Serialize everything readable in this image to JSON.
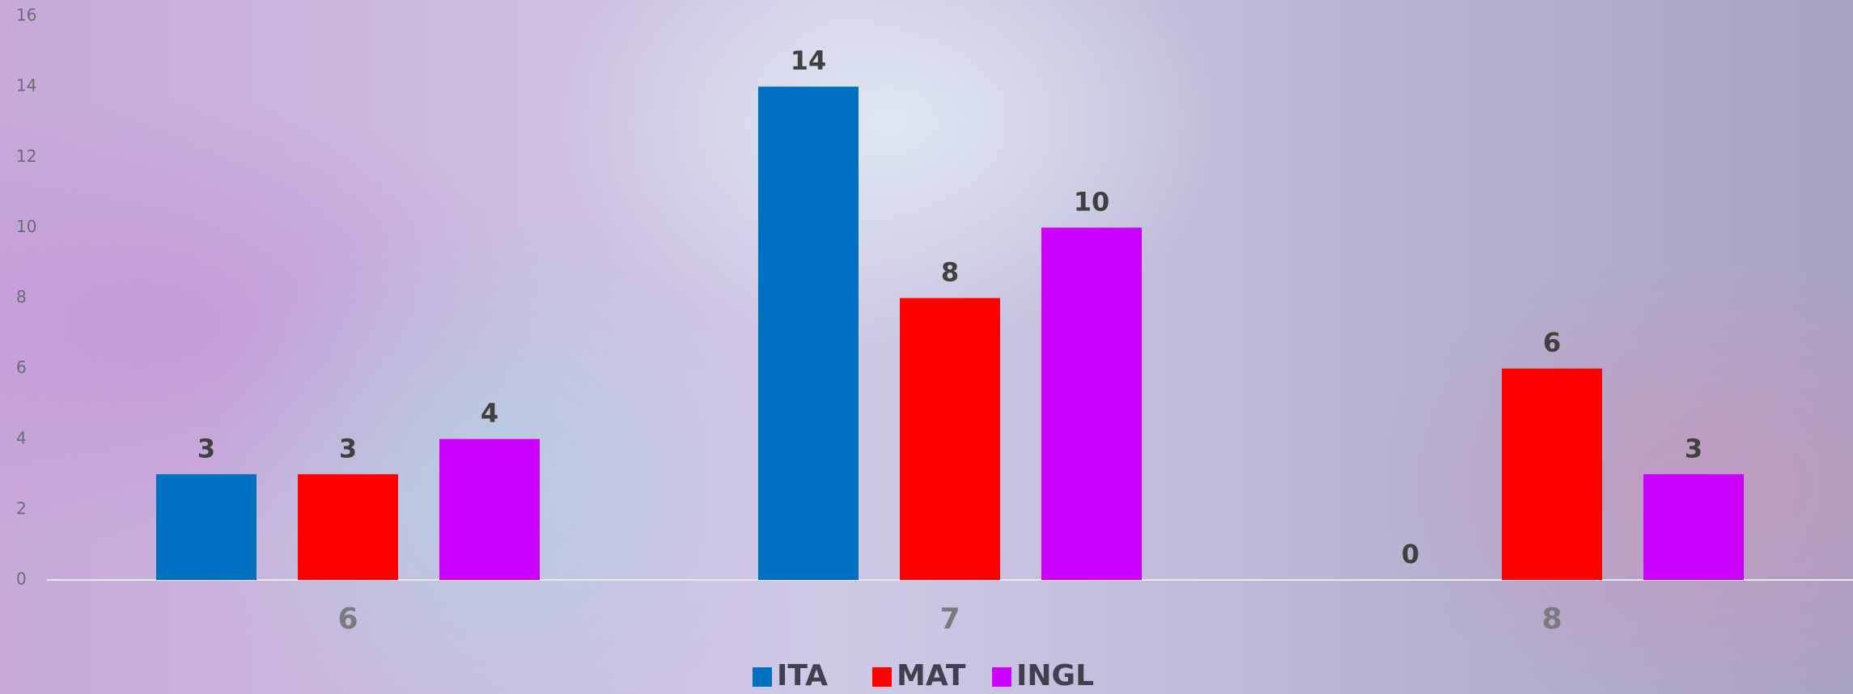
{
  "chart_data": {
    "type": "bar",
    "categories": [
      "6",
      "7",
      "8"
    ],
    "series": [
      {
        "name": "ITA",
        "color": "#0070c0",
        "values": [
          3,
          14,
          0
        ]
      },
      {
        "name": "MAT",
        "color": "#ff0000",
        "values": [
          3,
          8,
          6
        ]
      },
      {
        "name": "INGL",
        "color": "#cc00ff",
        "values": [
          4,
          10,
          3
        ]
      }
    ],
    "ylim": [
      0,
      16
    ],
    "yticks": [
      0,
      2,
      4,
      6,
      8,
      10,
      12,
      14,
      16
    ],
    "grid": false,
    "legend": "bottom"
  }
}
